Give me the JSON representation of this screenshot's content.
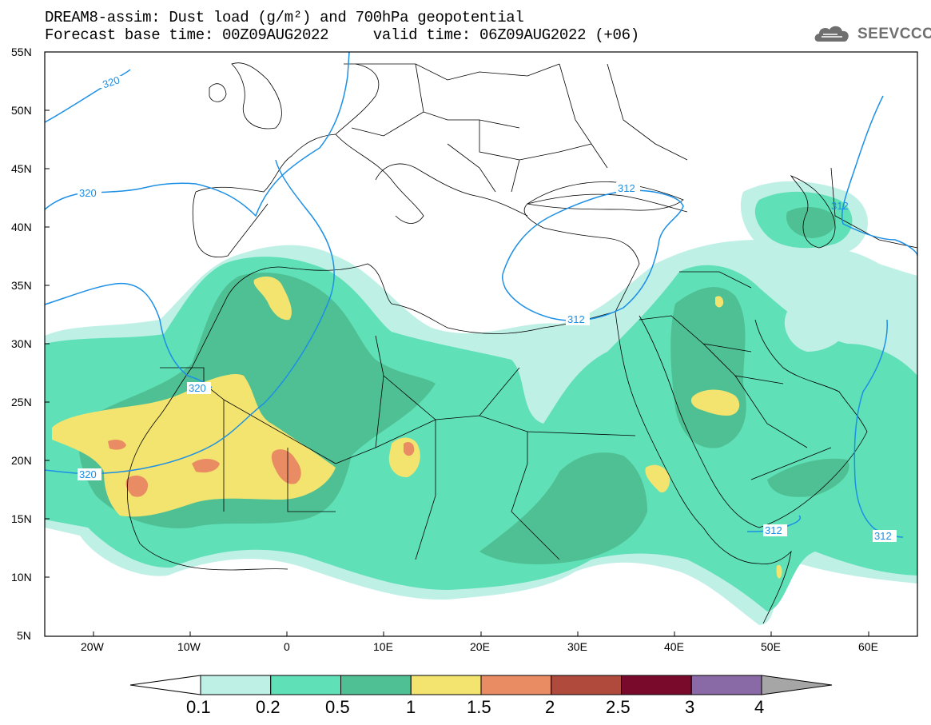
{
  "header": {
    "title_line1": "DREAM8-assim: Dust load (g/m²) and 700hPa geopotential",
    "title_line2": "Forecast base time: 00Z09AUG2022     valid time: 06Z09AUG2022 (+06)"
  },
  "logo": {
    "text": "SEEVCCC",
    "icon": "cloud-logo-icon"
  },
  "map": {
    "lat_labels": [
      "55N",
      "50N",
      "45N",
      "40N",
      "35N",
      "30N",
      "25N",
      "20N",
      "15N",
      "10N",
      "5N"
    ],
    "lon_labels": [
      "20W",
      "10W",
      "0",
      "10E",
      "20E",
      "30E",
      "40E",
      "50E",
      "60E"
    ],
    "contour_labels": [
      "320",
      "320",
      "320",
      "320",
      "312",
      "312",
      "312",
      "312",
      "312"
    ],
    "contour_color": "#1c8fe6"
  },
  "colorbar": {
    "levels": [
      "0.1",
      "0.2",
      "0.5",
      "1",
      "1.5",
      "2",
      "2.5",
      "3",
      "4"
    ],
    "colors": [
      "#ffffff",
      "#bff0e6",
      "#5fe0b7",
      "#4fbf94",
      "#f2e46e",
      "#e98c64",
      "#b04a3c",
      "#7a0a2c",
      "#8a6aa6",
      "#a6a6a6"
    ]
  }
}
